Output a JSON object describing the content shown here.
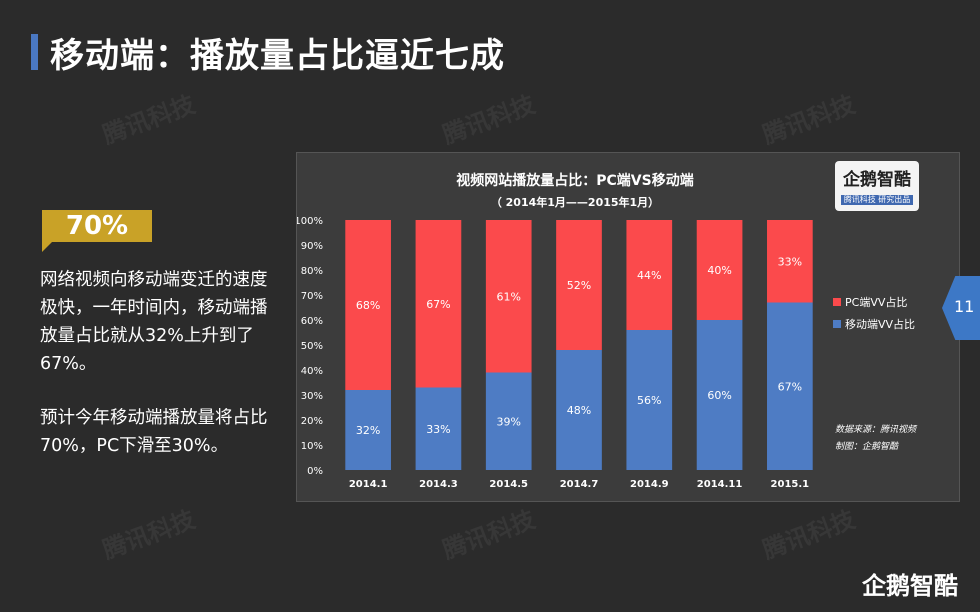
{
  "header": {
    "title": "移动端：播放量占比逼近七成"
  },
  "highlight": {
    "value": "70%",
    "para1": "网络视频向移动端变迁的速度极快，一年时间内，移动端播放量占比就从32%上升到了67%。",
    "para2": "预计今年移动端播放量将占比70%，PC下滑至30%。"
  },
  "watermark_text": "腾讯科技",
  "logo": {
    "main": "企鹅智酷",
    "sub": "腾讯科技 研究出品"
  },
  "page_number": "11",
  "footer_logo": "企鹅智酷",
  "colors": {
    "pc": "#fb4a4c",
    "mobile": "#4e7cc4",
    "accent": "#c9a227",
    "page_tab": "#3d78c6"
  },
  "chart_data": {
    "type": "bar",
    "stacked": true,
    "title": "视频网站播放量占比：PC端VS移动端",
    "subtitle": "（ 2014年1月——2015年1月）",
    "categories": [
      "2014.1",
      "2014.3",
      "2014.5",
      "2014.7",
      "2014.9",
      "2014.11",
      "2015.1"
    ],
    "series": [
      {
        "name": "移动端VV占比",
        "values": [
          32,
          33,
          39,
          48,
          56,
          60,
          67
        ],
        "labels": [
          "32%",
          "33%",
          "39%",
          "48%",
          "56%",
          "60%",
          "67%"
        ]
      },
      {
        "name": "PC端VV占比",
        "values": [
          68,
          67,
          61,
          52,
          44,
          40,
          33
        ],
        "labels": [
          "68%",
          "67%",
          "61%",
          "52%",
          "44%",
          "40%",
          "33%"
        ]
      }
    ],
    "ylim": [
      0,
      100
    ],
    "yticks": [
      "0%",
      "10%",
      "20%",
      "30%",
      "40%",
      "50%",
      "60%",
      "70%",
      "80%",
      "90%",
      "100%"
    ],
    "legend": "right",
    "source": "数据来源：腾讯视频",
    "maker": "制图：企鹅智酷"
  }
}
